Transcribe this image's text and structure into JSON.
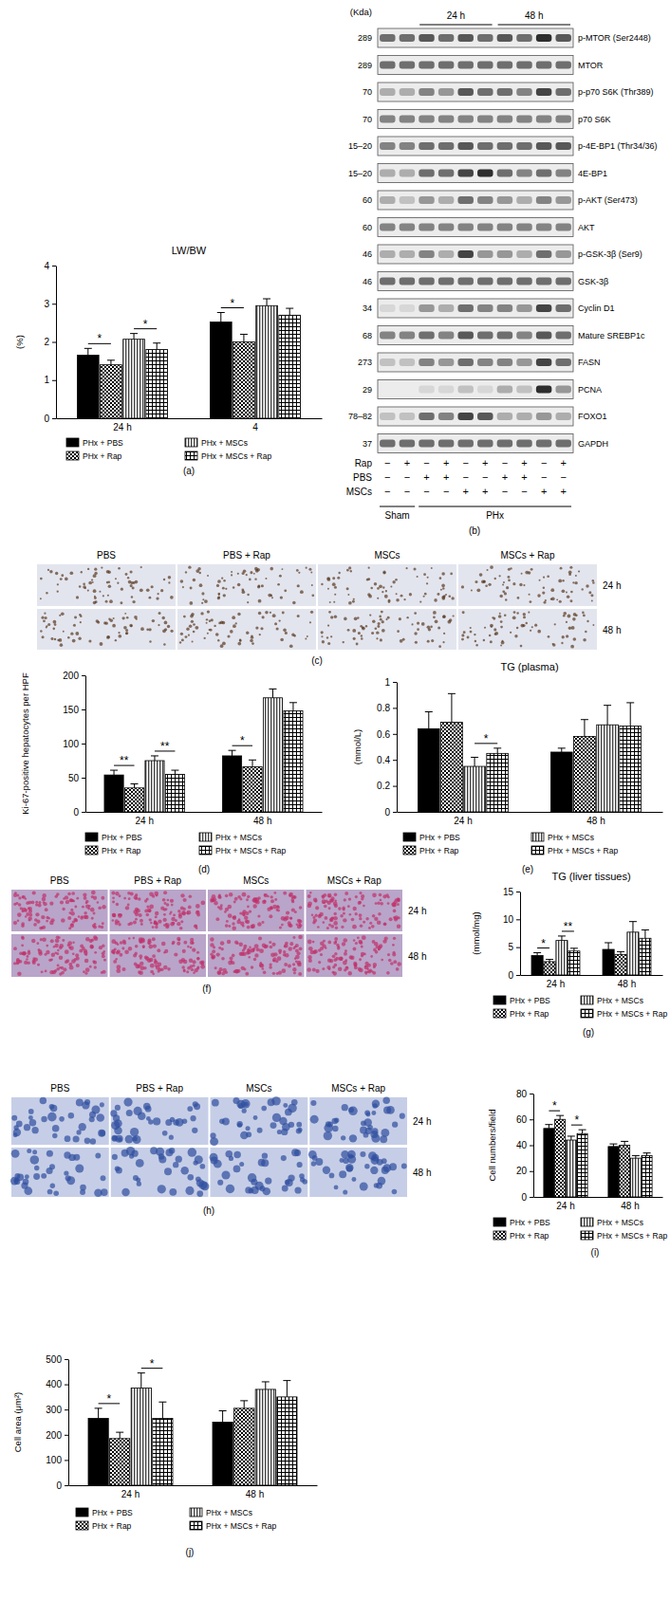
{
  "chart_data": [
    {
      "type": "bar",
      "title": "LW/BW",
      "ylabel": "(%)",
      "categories": [
        "24 h",
        "4"
      ],
      "series": [
        {
          "name": "PHx + PBS",
          "color": "#000000",
          "values": [
            1.65,
            2.52
          ],
          "errors": [
            0.18,
            0.25
          ]
        },
        {
          "name": "PHx + Rap",
          "color": "#000000",
          "values": [
            1.4,
            2.0
          ],
          "errors": [
            0.12,
            0.2
          ]
        },
        {
          "name": "PHx + MSCs",
          "color": "#000000",
          "values": [
            2.07,
            2.95
          ],
          "errors": [
            0.15,
            0.18
          ]
        },
        {
          "name": "PHx + MSCs + Rap",
          "color": "#000000",
          "values": [
            1.8,
            2.7
          ],
          "errors": [
            0.17,
            0.18
          ]
        }
      ],
      "ylim": [
        0,
        4
      ],
      "yticks": [
        0,
        1,
        2,
        3,
        4
      ],
      "legend": "bottom",
      "annotations": [
        {
          "text": "*",
          "category": "24 h",
          "series": [
            "PHx + PBS",
            "PHx + Rap"
          ]
        },
        {
          "text": "*",
          "category": "24 h",
          "series": [
            "PHx + MSCs",
            "PHx + MSCs + Rap"
          ]
        },
        {
          "text": "*",
          "category": "4",
          "series": [
            "PHx + PBS",
            "PHx + Rap"
          ]
        }
      ]
    },
    {
      "type": "bar",
      "ylabel": "Ki-67-positive hepatocytes per HPF",
      "categories": [
        "24 h",
        "48 h"
      ],
      "series": [
        {
          "name": "PHx + PBS",
          "color": "#000000",
          "values": [
            54,
            82
          ],
          "errors": [
            7,
            8
          ]
        },
        {
          "name": "PHx + Rap",
          "color": "#000000",
          "values": [
            35,
            66
          ],
          "errors": [
            6,
            10
          ]
        },
        {
          "name": "PHx + MSCs",
          "color": "#000000",
          "values": [
            75,
            167
          ],
          "errors": [
            7,
            13
          ]
        },
        {
          "name": "PHx + MSCs + Rap",
          "color": "#000000",
          "values": [
            55,
            148
          ],
          "errors": [
            6,
            12
          ]
        }
      ],
      "ylim": [
        0,
        200
      ],
      "yticks": [
        0,
        50,
        100,
        150,
        200
      ],
      "legend": "bottom",
      "annotations": [
        {
          "text": "**",
          "category": "24 h",
          "series": [
            "PHx + PBS",
            "PHx + Rap"
          ]
        },
        {
          "text": "**",
          "category": "24 h",
          "series": [
            "PHx + MSCs",
            "PHx + MSCs + Rap"
          ]
        },
        {
          "text": "*",
          "category": "48 h",
          "series": [
            "PHx + PBS",
            "PHx + Rap"
          ]
        }
      ]
    },
    {
      "type": "bar",
      "title": "TG (plasma)",
      "ylabel": "(mmol/L)",
      "categories": [
        "24 h",
        "48 h"
      ],
      "series": [
        {
          "name": "PHx + PBS",
          "color": "#000000",
          "values": [
            0.64,
            0.46
          ],
          "errors": [
            0.13,
            0.03
          ]
        },
        {
          "name": "PHx + Rap",
          "color": "#000000",
          "values": [
            0.69,
            0.58
          ],
          "errors": [
            0.22,
            0.13
          ]
        },
        {
          "name": "PHx + MSCs",
          "color": "#000000",
          "values": [
            0.35,
            0.67
          ],
          "errors": [
            0.07,
            0.15
          ]
        },
        {
          "name": "PHx + MSCs + Rap",
          "color": "#000000",
          "values": [
            0.45,
            0.66
          ],
          "errors": [
            0.04,
            0.18
          ]
        }
      ],
      "ylim": [
        0,
        1
      ],
      "yticks": [
        0,
        0.2,
        0.4,
        0.6,
        0.8,
        1
      ],
      "legend": "bottom",
      "annotations": [
        {
          "text": "*",
          "category": "24 h",
          "series": [
            "PHx + MSCs",
            "PHx + MSCs + Rap"
          ]
        }
      ]
    },
    {
      "type": "bar",
      "title": "TG (liver tissues)",
      "ylabel": "(mmol/mg)",
      "categories": [
        "24 h",
        "48 h"
      ],
      "series": [
        {
          "name": "PHx + PBS",
          "color": "#000000",
          "values": [
            3.5,
            4.6
          ],
          "errors": [
            0.5,
            1.2
          ]
        },
        {
          "name": "PHx + Rap",
          "color": "#000000",
          "values": [
            2.4,
            3.7
          ],
          "errors": [
            0.4,
            0.5
          ]
        },
        {
          "name": "PHx + MSCs",
          "color": "#000000",
          "values": [
            6.2,
            7.7
          ],
          "errors": [
            0.8,
            1.9
          ]
        },
        {
          "name": "PHx + MSCs + Rap",
          "color": "#000000",
          "values": [
            4.3,
            6.6
          ],
          "errors": [
            0.5,
            1.5
          ]
        }
      ],
      "ylim": [
        0,
        15
      ],
      "yticks": [
        0,
        5,
        10,
        15
      ],
      "legend": "bottom",
      "annotations": [
        {
          "text": "*",
          "category": "24 h",
          "series": [
            "PHx + PBS",
            "PHx + Rap"
          ]
        },
        {
          "text": "**",
          "category": "24 h",
          "series": [
            "PHx + MSCs",
            "PHx + MSCs + Rap"
          ]
        }
      ]
    },
    {
      "type": "bar",
      "ylabel": "Cell numbers/field",
      "categories": [
        "24 h",
        "48 h"
      ],
      "series": [
        {
          "name": "PHx + PBS",
          "color": "#000000",
          "values": [
            53,
            39
          ],
          "errors": [
            3,
            2
          ]
        },
        {
          "name": "PHx + Rap",
          "color": "#000000",
          "values": [
            60,
            40
          ],
          "errors": [
            3,
            3
          ]
        },
        {
          "name": "PHx + MSCs",
          "color": "#000000",
          "values": [
            44,
            30
          ],
          "errors": [
            3,
            2
          ]
        },
        {
          "name": "PHx + MSCs + Rap",
          "color": "#000000",
          "values": [
            49,
            32
          ],
          "errors": [
            3,
            2
          ]
        }
      ],
      "ylim": [
        0,
        80
      ],
      "yticks": [
        0,
        20,
        40,
        60,
        80
      ],
      "legend": "bottom",
      "annotations": [
        {
          "text": "*",
          "category": "24 h",
          "series": [
            "PHx + PBS",
            "PHx + Rap"
          ]
        },
        {
          "text": "*",
          "category": "24 h",
          "series": [
            "PHx + MSCs",
            "PHx + MSCs + Rap"
          ]
        }
      ]
    },
    {
      "type": "bar",
      "ylabel": "Cell area (μm²)",
      "categories": [
        "24 h",
        "48 h"
      ],
      "series": [
        {
          "name": "PHx + PBS",
          "color": "#000000",
          "values": [
            265,
            250
          ],
          "errors": [
            40,
            45
          ]
        },
        {
          "name": "PHx + Rap",
          "color": "#000000",
          "values": [
            185,
            305
          ],
          "errors": [
            25,
            30
          ]
        },
        {
          "name": "PHx + MSCs",
          "color": "#000000",
          "values": [
            385,
            380
          ],
          "errors": [
            60,
            30
          ]
        },
        {
          "name": "PHx + MSCs + Rap",
          "color": "#000000",
          "values": [
            265,
            350
          ],
          "errors": [
            65,
            65
          ]
        }
      ],
      "ylim": [
        0,
        500
      ],
      "yticks": [
        0,
        100,
        200,
        300,
        400,
        500
      ],
      "legend": "bottom",
      "annotations": [
        {
          "text": "*",
          "category": "24 h",
          "series": [
            "PHx + PBS",
            "PHx + Rap"
          ]
        },
        {
          "text": "*",
          "category": "24 h",
          "series": [
            "PHx + MSCs",
            "PHx + MSCs + Rap"
          ]
        }
      ]
    }
  ],
  "blot": {
    "unit_header": "(Kda)",
    "time_groups": [
      {
        "label": "24 h",
        "lanes": [
          2,
          3,
          4,
          5
        ]
      },
      {
        "label": "48 h",
        "lanes": [
          6,
          7,
          8,
          9
        ]
      }
    ],
    "rows": [
      {
        "kda": "289",
        "label": "p-MTOR (Ser2448)",
        "intensity": [
          0.6,
          0.6,
          0.7,
          0.6,
          0.7,
          0.6,
          0.7,
          0.6,
          0.9,
          0.7
        ]
      },
      {
        "kda": "289",
        "label": "MTOR",
        "intensity": [
          0.6,
          0.6,
          0.6,
          0.6,
          0.6,
          0.6,
          0.6,
          0.6,
          0.6,
          0.6
        ]
      },
      {
        "kda": "70",
        "label": "p-p70 S6K (Thr389)",
        "intensity": [
          0.3,
          0.3,
          0.5,
          0.4,
          0.7,
          0.6,
          0.6,
          0.5,
          0.8,
          0.6
        ]
      },
      {
        "kda": "70",
        "label": "p70 S6K",
        "intensity": [
          0.5,
          0.5,
          0.5,
          0.5,
          0.5,
          0.5,
          0.5,
          0.5,
          0.5,
          0.5
        ]
      },
      {
        "kda": "15–20",
        "label": "p-4E-BP1 (Thr34/36)",
        "intensity": [
          0.5,
          0.5,
          0.6,
          0.6,
          0.7,
          0.6,
          0.6,
          0.6,
          0.7,
          0.7
        ]
      },
      {
        "kda": "15–20",
        "label": "4E-BP1",
        "intensity": [
          0.3,
          0.3,
          0.6,
          0.6,
          0.8,
          0.9,
          0.6,
          0.5,
          0.6,
          0.5
        ]
      },
      {
        "kda": "60",
        "label": "p-AKT (Ser473)",
        "intensity": [
          0.3,
          0.2,
          0.4,
          0.3,
          0.6,
          0.5,
          0.4,
          0.3,
          0.5,
          0.4
        ]
      },
      {
        "kda": "60",
        "label": "AKT",
        "intensity": [
          0.5,
          0.5,
          0.5,
          0.5,
          0.5,
          0.5,
          0.5,
          0.5,
          0.5,
          0.5
        ]
      },
      {
        "kda": "46",
        "label": "p-GSK-3β (Ser9)",
        "intensity": [
          0.3,
          0.3,
          0.5,
          0.3,
          0.8,
          0.4,
          0.4,
          0.3,
          0.6,
          0.4
        ]
      },
      {
        "kda": "46",
        "label": "GSK-3β",
        "intensity": [
          0.6,
          0.6,
          0.6,
          0.6,
          0.6,
          0.6,
          0.6,
          0.6,
          0.6,
          0.6
        ]
      },
      {
        "kda": "34",
        "label": "Cyclin D1",
        "intensity": [
          0.1,
          0.1,
          0.4,
          0.3,
          0.6,
          0.5,
          0.5,
          0.4,
          0.8,
          0.6
        ]
      },
      {
        "kda": "68",
        "label": "Mature SREBP1c",
        "intensity": [
          0.5,
          0.5,
          0.6,
          0.5,
          0.7,
          0.6,
          0.6,
          0.5,
          0.7,
          0.6
        ]
      },
      {
        "kda": "273",
        "label": "FASN",
        "intensity": [
          0.2,
          0.2,
          0.5,
          0.4,
          0.6,
          0.5,
          0.5,
          0.4,
          0.8,
          0.6
        ]
      },
      {
        "kda": "29",
        "label": "PCNA",
        "intensity": [
          0,
          0,
          0.1,
          0.1,
          0.2,
          0.1,
          0.3,
          0.2,
          0.9,
          0.4
        ]
      },
      {
        "kda": "78–82",
        "label": "FOXO1",
        "intensity": [
          0.2,
          0.2,
          0.6,
          0.5,
          0.8,
          0.7,
          0.3,
          0.3,
          0.4,
          0.3
        ]
      },
      {
        "kda": "37",
        "label": "GAPDH",
        "intensity": [
          0.6,
          0.6,
          0.6,
          0.6,
          0.6,
          0.6,
          0.6,
          0.6,
          0.6,
          0.6
        ]
      }
    ],
    "conditions": [
      {
        "label": "Rap",
        "signs": [
          "−",
          "+",
          "−",
          "+",
          "−",
          "+",
          "−",
          "+",
          "−",
          "+"
        ]
      },
      {
        "label": "PBS",
        "signs": [
          "−",
          "−",
          "+",
          "+",
          "−",
          "−",
          "+",
          "+",
          "−",
          "−"
        ]
      },
      {
        "label": "MSCs",
        "signs": [
          "−",
          "−",
          "−",
          "−",
          "+",
          "+",
          "−",
          "−",
          "+",
          "+"
        ]
      }
    ],
    "groups": [
      {
        "label": "Sham",
        "lanes": [
          0,
          1
        ]
      },
      {
        "label": "PHx",
        "lanes": [
          2,
          3,
          4,
          5,
          6,
          7,
          8,
          9
        ]
      }
    ]
  },
  "micrographs": [
    {
      "columns": [
        "PBS",
        "PBS + Rap",
        "MSCs",
        "MSCs + Rap"
      ],
      "rows": [
        "24 h",
        "48 h"
      ]
    },
    {
      "columns": [
        "PBS",
        "PBS + Rap",
        "MSCs",
        "MSCs + Rap"
      ],
      "rows": [
        "24 h",
        "48 h"
      ]
    },
    {
      "columns": [
        "PBS",
        "PBS + Rap",
        "MSCs",
        "MSCs + Rap"
      ],
      "rows": [
        "24 h",
        "48 h"
      ]
    }
  ],
  "panel_labels": [
    "(a)",
    "(b)",
    "(c)",
    "(d)",
    "(e)",
    "(f)",
    "(g)",
    "(h)",
    "(i)",
    "(j)"
  ]
}
